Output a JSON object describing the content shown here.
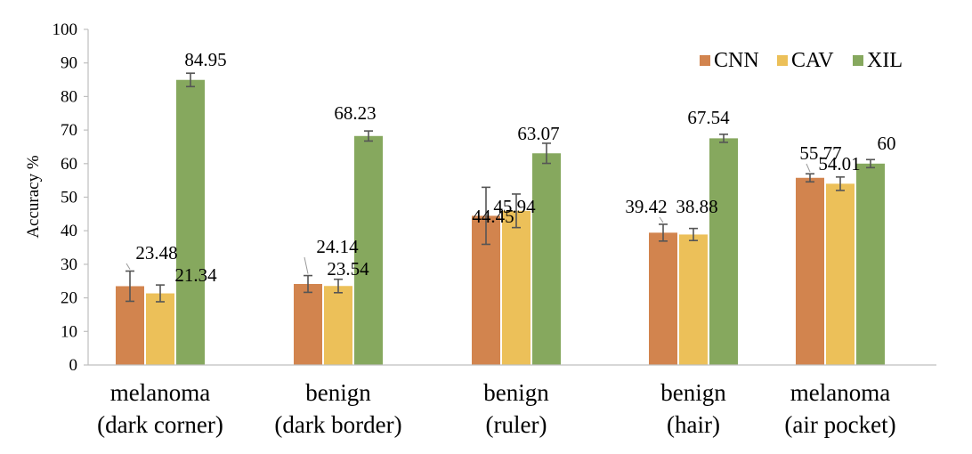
{
  "chart_data": {
    "type": "bar",
    "ylabel": "Accuracy %",
    "xlabel": "",
    "ylim": [
      0,
      100
    ],
    "yticks": [
      "0",
      "10",
      "20",
      "30",
      "40",
      "50",
      "60",
      "70",
      "80",
      "90",
      "100"
    ],
    "grid": false,
    "legend_position": "top-right",
    "categories": [
      [
        "melanoma",
        "(dark corner)"
      ],
      [
        "benign",
        "(dark border)"
      ],
      [
        "benign",
        "(ruler)"
      ],
      [
        "benign",
        "(hair)"
      ],
      [
        "melanoma",
        "(air pocket)"
      ]
    ],
    "series": [
      {
        "name": "CNN",
        "color": "#d2844e",
        "values": [
          23.48,
          24.14,
          44.45,
          39.42,
          55.77
        ],
        "labels": [
          "23.48",
          "24.14",
          "44.45",
          "39.42",
          "55.77"
        ],
        "errors": [
          4.5,
          2.5,
          8.5,
          2.5,
          1.2
        ]
      },
      {
        "name": "CAV",
        "color": "#ecc059",
        "values": [
          21.34,
          23.54,
          45.94,
          38.88,
          54.01
        ],
        "labels": [
          "21.34",
          "23.54",
          "45.94",
          "38.88",
          "54.01"
        ],
        "errors": [
          2.5,
          2.0,
          5.0,
          1.8,
          2.0
        ]
      },
      {
        "name": "XIL",
        "color": "#86a85e",
        "values": [
          84.95,
          68.23,
          63.07,
          67.54,
          60
        ],
        "labels": [
          "84.95",
          "68.23",
          "63.07",
          "67.54",
          "60"
        ],
        "errors": [
          2.0,
          1.5,
          3.0,
          1.2,
          1.2
        ]
      }
    ]
  }
}
